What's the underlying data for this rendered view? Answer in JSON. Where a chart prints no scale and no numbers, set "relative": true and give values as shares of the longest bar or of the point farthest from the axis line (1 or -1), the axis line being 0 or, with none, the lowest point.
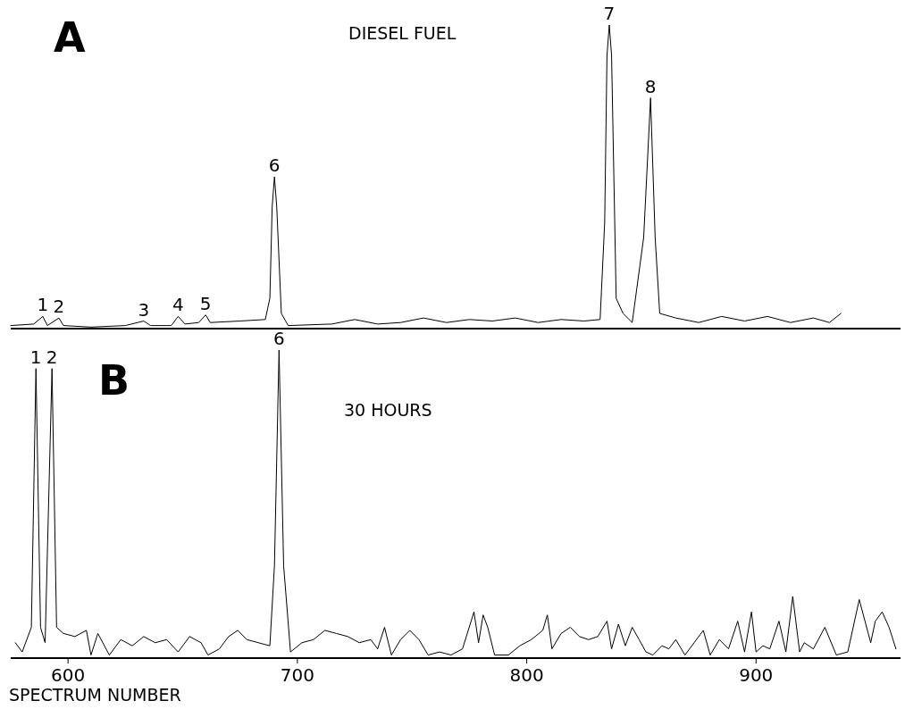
{
  "chart_data": [
    {
      "type": "line",
      "title": "A",
      "subtitle": "DIESEL FUEL",
      "relative": true,
      "xlim": [
        575,
        963
      ],
      "x": [
        575,
        585,
        589,
        591,
        596,
        598,
        610,
        625,
        633,
        636,
        645,
        648,
        651,
        657,
        660,
        662,
        675,
        686,
        688,
        689,
        690,
        691,
        693,
        696,
        715,
        725,
        735,
        745,
        755,
        765,
        775,
        785,
        795,
        805,
        815,
        825,
        832,
        834,
        835,
        836,
        837,
        839,
        842,
        846,
        851,
        854,
        856,
        858,
        865,
        875,
        885,
        895,
        905,
        915,
        925,
        932,
        937
      ],
      "series": [
        {
          "color": "#000000",
          "values": [
            0.01,
            0.015,
            0.04,
            0.01,
            0.035,
            0.01,
            0.005,
            0.01,
            0.025,
            0.01,
            0.01,
            0.04,
            0.015,
            0.02,
            0.045,
            0.02,
            0.025,
            0.03,
            0.1,
            0.4,
            0.5,
            0.4,
            0.05,
            0.01,
            0.015,
            0.03,
            0.015,
            0.02,
            0.035,
            0.02,
            0.03,
            0.025,
            0.035,
            0.02,
            0.03,
            0.025,
            0.03,
            0.35,
            0.9,
            1,
            0.9,
            0.1,
            0.05,
            0.02,
            0.3,
            0.76,
            0.3,
            0.05,
            0.035,
            0.02,
            0.04,
            0.025,
            0.04,
            0.02,
            0.035,
            0.02,
            0.05
          ]
        }
      ],
      "annotations": [
        {
          "text": "1",
          "x": 589,
          "y": 0.04
        },
        {
          "text": "2",
          "x": 596,
          "y": 0.035
        },
        {
          "text": "3",
          "x": 633,
          "y": 0.025
        },
        {
          "text": "4",
          "x": 648,
          "y": 0.04
        },
        {
          "text": "5",
          "x": 660,
          "y": 0.045
        },
        {
          "text": "6",
          "x": 690,
          "y": 0.5
        },
        {
          "text": "7",
          "x": 836,
          "y": 1
        },
        {
          "text": "8",
          "x": 854,
          "y": 0.76
        }
      ]
    },
    {
      "type": "line",
      "title": "B",
      "subtitle": "30 HOURS",
      "xlabel": "SPECTRUM NUMBER",
      "relative": true,
      "xlim": [
        575,
        963
      ],
      "xticks": [
        600,
        700,
        800,
        900
      ],
      "x": [
        577,
        580,
        584,
        586,
        588,
        590,
        593,
        595,
        598,
        603,
        608,
        610,
        613,
        618,
        623,
        628,
        633,
        638,
        643,
        648,
        653,
        658,
        661,
        666,
        670,
        674,
        678,
        683,
        688,
        690,
        692,
        694,
        697,
        702,
        707,
        712,
        717,
        722,
        727,
        732,
        735,
        738,
        741,
        745,
        749,
        753,
        757,
        762,
        767,
        772,
        777,
        779,
        781,
        783,
        786,
        792,
        797,
        802,
        807,
        809,
        811,
        815,
        819,
        823,
        827,
        831,
        835,
        837,
        840,
        843,
        846,
        849,
        852,
        855,
        859,
        862,
        865,
        869,
        873,
        877,
        880,
        884,
        888,
        892,
        895,
        898,
        900,
        903,
        906,
        910,
        913,
        916,
        919,
        921,
        925,
        930,
        935,
        940,
        945,
        950,
        952,
        955,
        958,
        961
      ],
      "series": [
        {
          "color": "#000000",
          "values": [
            0.05,
            0.02,
            0.1,
            0.94,
            0.1,
            0.05,
            0.94,
            0.1,
            0.08,
            0.07,
            0.09,
            0.01,
            0.08,
            0.01,
            0.06,
            0.04,
            0.07,
            0.05,
            0.06,
            0.02,
            0.07,
            0.05,
            0.01,
            0.03,
            0.07,
            0.09,
            0.06,
            0.05,
            0.04,
            0.3,
            1,
            0.3,
            0.02,
            0.05,
            0.06,
            0.09,
            0.08,
            0.07,
            0.05,
            0.06,
            0.03,
            0.1,
            0.01,
            0.06,
            0.09,
            0.06,
            0.01,
            0.02,
            0.01,
            0.03,
            0.15,
            0.05,
            0.14,
            0.1,
            0.01,
            0.01,
            0.04,
            0.06,
            0.09,
            0.14,
            0.03,
            0.08,
            0.1,
            0.07,
            0.06,
            0.07,
            0.12,
            0.03,
            0.11,
            0.04,
            0.1,
            0.06,
            0.02,
            0.01,
            0.04,
            0.03,
            0.06,
            0.01,
            0.05,
            0.09,
            0.01,
            0.06,
            0.03,
            0.12,
            0.02,
            0.15,
            0.02,
            0.04,
            0.03,
            0.12,
            0.02,
            0.2,
            0.02,
            0.05,
            0.03,
            0.1,
            0.01,
            0.02,
            0.19,
            0.05,
            0.12,
            0.15,
            0.1,
            0.03
          ]
        }
      ],
      "annotations": [
        {
          "text": "1",
          "x": 586,
          "y": 0.94
        },
        {
          "text": "2",
          "x": 593,
          "y": 0.94
        },
        {
          "text": "6",
          "x": 692,
          "y": 1
        }
      ]
    }
  ]
}
